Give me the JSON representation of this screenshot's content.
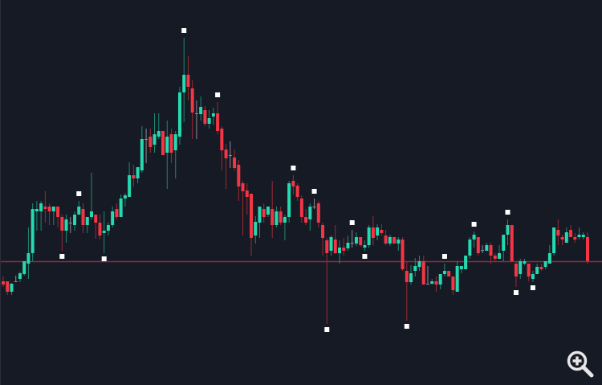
{
  "chart_data": {
    "type": "candlestick",
    "title": "",
    "xlabel": "",
    "ylabel": "",
    "grid": false,
    "candle_format": [
      "open",
      "high",
      "low",
      "close"
    ],
    "candles": [
      [
        13.0,
        13.6,
        12.3,
        12.6
      ],
      [
        13.0,
        13.0,
        11.3,
        11.7
      ],
      [
        11.7,
        12.8,
        11.3,
        12.7
      ],
      [
        13.0,
        13.7,
        12.9,
        13.0
      ],
      [
        13.3,
        14.2,
        12.9,
        14.0
      ],
      [
        13.9,
        15.5,
        13.7,
        15.5
      ],
      [
        15.2,
        19.7,
        13.3,
        16.5
      ],
      [
        16.5,
        22.7,
        15.5,
        22.0
      ],
      [
        21.7,
        23.0,
        19.3,
        22.0
      ],
      [
        21.7,
        23.0,
        19.3,
        22.7
      ],
      [
        22.3,
        24.2,
        20.3,
        22.0
      ],
      [
        22.3,
        22.7,
        20.0,
        21.7
      ],
      [
        21.7,
        22.3,
        20.0,
        22.3
      ],
      [
        22.3,
        22.3,
        19.7,
        21.0
      ],
      [
        21.0,
        21.3,
        16.8,
        19.3
      ],
      [
        19.3,
        21.3,
        17.8,
        20.7
      ],
      [
        20.3,
        21.0,
        19.0,
        20.3
      ],
      [
        20.0,
        21.7,
        19.3,
        21.3
      ],
      [
        21.3,
        23.0,
        21.3,
        22.3
      ],
      [
        22.0,
        22.7,
        19.0,
        20.0
      ],
      [
        20.0,
        21.0,
        19.0,
        21.0
      ],
      [
        21.0,
        26.5,
        20.7,
        21.7
      ],
      [
        21.3,
        21.3,
        18.3,
        20.3
      ],
      [
        20.3,
        21.3,
        18.2,
        18.7
      ],
      [
        19.0,
        21.7,
        16.5,
        19.3
      ],
      [
        19.3,
        20.3,
        18.7,
        20.0
      ],
      [
        20.0,
        22.3,
        19.7,
        21.7
      ],
      [
        22.0,
        22.7,
        20.7,
        21.0
      ],
      [
        21.0,
        23.8,
        21.0,
        23.3
      ],
      [
        23.3,
        24.0,
        22.3,
        23.7
      ],
      [
        23.5,
        27.8,
        23.5,
        26.2
      ],
      [
        26.2,
        27.5,
        24.8,
        25.8
      ],
      [
        25.8,
        27.2,
        25.2,
        27.2
      ],
      [
        26.8,
        32.3,
        26.5,
        30.7
      ],
      [
        30.7,
        32.0,
        27.7,
        30.7
      ],
      [
        31.0,
        32.0,
        29.0,
        29.7
      ],
      [
        30.0,
        33.9,
        29.0,
        31.3
      ],
      [
        31.0,
        33.9,
        30.7,
        31.7
      ],
      [
        31.7,
        31.7,
        28.7,
        28.7
      ],
      [
        29.0,
        33.0,
        24.5,
        31.0
      ],
      [
        31.3,
        32.0,
        27.7,
        29.0
      ],
      [
        29.3,
        31.7,
        25.8,
        31.3
      ],
      [
        31.0,
        37.2,
        30.0,
        36.5
      ],
      [
        36.5,
        43.3,
        32.8,
        38.7
      ],
      [
        38.7,
        41.0,
        35.5,
        37.2
      ],
      [
        37.0,
        38.0,
        30.7,
        34.0
      ],
      [
        33.9,
        35.5,
        30.7,
        33.9
      ],
      [
        33.8,
        36.0,
        33.0,
        34.7
      ],
      [
        34.3,
        34.8,
        32.3,
        32.6
      ],
      [
        32.6,
        34.3,
        32.0,
        33.3
      ],
      [
        33.5,
        34.6,
        32.5,
        33.9
      ],
      [
        33.9,
        35.3,
        31.3,
        31.7
      ],
      [
        32.0,
        32.3,
        26.8,
        29.3
      ],
      [
        29.4,
        30.1,
        24.5,
        28.3
      ],
      [
        28.7,
        30.4,
        27.1,
        28.7
      ],
      [
        28.4,
        29.4,
        26.8,
        27.1
      ],
      [
        27.5,
        28.1,
        23.0,
        24.8
      ],
      [
        25.2,
        25.5,
        18.7,
        24.2
      ],
      [
        24.3,
        25.2,
        21.3,
        23.5
      ],
      [
        23.9,
        23.9,
        16.2,
        18.4
      ],
      [
        18.7,
        21.1,
        17.7,
        20.4
      ],
      [
        20.3,
        22.3,
        18.4,
        22.3
      ],
      [
        22.0,
        22.7,
        20.3,
        21.0
      ],
      [
        21.3,
        22.3,
        21.0,
        22.3
      ],
      [
        22.0,
        25.5,
        18.4,
        20.0
      ],
      [
        20.0,
        22.3,
        19.7,
        21.7
      ],
      [
        21.7,
        22.3,
        20.0,
        20.3
      ],
      [
        20.3,
        21.3,
        18.1,
        21.0
      ],
      [
        21.0,
        25.5,
        20.3,
        25.2
      ],
      [
        25.5,
        26.2,
        23.8,
        24.8
      ],
      [
        24.9,
        25.2,
        23.0,
        23.5
      ],
      [
        23.3,
        23.7,
        20.3,
        21.0
      ],
      [
        21.0,
        22.0,
        20.0,
        20.3
      ],
      [
        20.7,
        22.7,
        19.3,
        22.3
      ],
      [
        22.3,
        23.3,
        22.0,
        22.3
      ],
      [
        22.7,
        23.0,
        19.7,
        20.3
      ],
      [
        20.0,
        20.3,
        16.2,
        18.4
      ],
      [
        18.1,
        18.4,
        7.7,
        16.5
      ],
      [
        16.8,
        18.7,
        16.2,
        18.5
      ],
      [
        18.2,
        20.0,
        16.4,
        16.5
      ],
      [
        16.5,
        18.1,
        15.2,
        17.2
      ],
      [
        17.2,
        18.4,
        16.2,
        16.8
      ],
      [
        17.1,
        18.7,
        16.8,
        17.8
      ],
      [
        17.8,
        19.4,
        17.2,
        17.8
      ],
      [
        17.7,
        19.1,
        17.4,
        18.5
      ],
      [
        18.5,
        18.5,
        17.3,
        17.5
      ],
      [
        17.2,
        18.1,
        16.8,
        17.5
      ],
      [
        17.5,
        20.0,
        17.2,
        19.7
      ],
      [
        19.7,
        21.1,
        17.5,
        18.4
      ],
      [
        18.7,
        20.1,
        18.1,
        19.7
      ],
      [
        19.4,
        20.1,
        18.7,
        19.0
      ],
      [
        18.7,
        19.4,
        17.5,
        17.7
      ],
      [
        17.7,
        18.8,
        17.4,
        18.5
      ],
      [
        18.5,
        18.5,
        17.7,
        17.7
      ],
      [
        17.7,
        18.5,
        16.8,
        18.2
      ],
      [
        18.2,
        18.5,
        14.3,
        14.5
      ],
      [
        14.3,
        15.5,
        8.1,
        12.9
      ],
      [
        12.9,
        15.0,
        12.6,
        14.0
      ],
      [
        14.3,
        15.9,
        13.6,
        14.9
      ],
      [
        14.8,
        16.2,
        14.3,
        15.5
      ],
      [
        15.5,
        16.2,
        12.6,
        12.6
      ],
      [
        12.7,
        14.9,
        12.6,
        12.7
      ],
      [
        12.7,
        13.3,
        12.6,
        13.0
      ],
      [
        13.0,
        13.6,
        11.7,
        12.6
      ],
      [
        12.6,
        13.9,
        12.0,
        13.9
      ],
      [
        13.9,
        15.2,
        13.6,
        14.3
      ],
      [
        14.3,
        14.3,
        13.6,
        13.6
      ],
      [
        13.6,
        13.6,
        11.3,
        11.9
      ],
      [
        11.7,
        15.5,
        11.7,
        14.9
      ],
      [
        14.5,
        14.9,
        14.0,
        14.9
      ],
      [
        14.5,
        16.2,
        14.5,
        16.2
      ],
      [
        16.2,
        18.5,
        15.8,
        18.2
      ],
      [
        18.2,
        19.2,
        17.2,
        18.8
      ],
      [
        18.5,
        18.5,
        16.2,
        16.5
      ],
      [
        16.9,
        17.5,
        16.5,
        16.9
      ],
      [
        16.8,
        17.8,
        16.8,
        17.5
      ],
      [
        17.5,
        17.8,
        15.2,
        16.2
      ],
      [
        16.2,
        16.5,
        15.5,
        15.8
      ],
      [
        15.8,
        17.5,
        15.8,
        16.5
      ],
      [
        16.8,
        18.8,
        15.5,
        18.8
      ],
      [
        18.8,
        20.7,
        17.5,
        20.0
      ],
      [
        20.0,
        20.0,
        15.5,
        15.5
      ],
      [
        15.2,
        15.5,
        12.3,
        13.6
      ],
      [
        13.9,
        15.8,
        13.3,
        15.5
      ],
      [
        15.2,
        15.8,
        15.0,
        15.5
      ],
      [
        15.2,
        15.2,
        13.0,
        13.6
      ],
      [
        13.3,
        14.3,
        12.9,
        13.9
      ],
      [
        13.9,
        15.2,
        13.9,
        14.8
      ],
      [
        14.8,
        15.2,
        14.3,
        14.5
      ],
      [
        14.8,
        15.5,
        14.5,
        15.5
      ],
      [
        15.2,
        17.5,
        15.2,
        16.5
      ],
      [
        16.5,
        19.7,
        16.2,
        19.7
      ],
      [
        19.4,
        20.7,
        17.5,
        18.7
      ],
      [
        18.5,
        18.8,
        17.5,
        18.2
      ],
      [
        17.8,
        19.7,
        17.8,
        19.1
      ],
      [
        19.4,
        20.0,
        18.5,
        18.5
      ],
      [
        18.5,
        19.0,
        17.8,
        18.2
      ],
      [
        18.5,
        19.7,
        18.2,
        18.8
      ],
      [
        18.5,
        19.1,
        18.2,
        18.8
      ],
      [
        18.5,
        19.1,
        15.2,
        15.5
      ]
    ],
    "fractals": [
      {
        "bar": 15,
        "type": "down"
      },
      {
        "bar": 19,
        "type": "up"
      },
      {
        "bar": 25,
        "type": "down"
      },
      {
        "bar": 44,
        "type": "up"
      },
      {
        "bar": 52,
        "type": "up"
      },
      {
        "bar": 70,
        "type": "up"
      },
      {
        "bar": 75,
        "type": "up"
      },
      {
        "bar": 78,
        "type": "down"
      },
      {
        "bar": 84,
        "type": "up"
      },
      {
        "bar": 87,
        "type": "down"
      },
      {
        "bar": 97,
        "type": "down"
      },
      {
        "bar": 106,
        "type": "up"
      },
      {
        "bar": 113,
        "type": "up"
      },
      {
        "bar": 121,
        "type": "up"
      },
      {
        "bar": 123,
        "type": "down"
      },
      {
        "bar": 127,
        "type": "down"
      }
    ],
    "horizontal_level": 15.5,
    "ylim": [
      0,
      48
    ]
  },
  "colors": {
    "background": "#161a25",
    "up": "#26d9b0",
    "down": "#f23645",
    "up_wick": "#1c8a73",
    "down_wick": "#9b2a35",
    "doji": "#8a8d96",
    "level_line": "#8a2f3c",
    "fractal": "#ffffff"
  },
  "controls": {
    "zoom_icon": "zoom-in-magnifier-icon"
  }
}
